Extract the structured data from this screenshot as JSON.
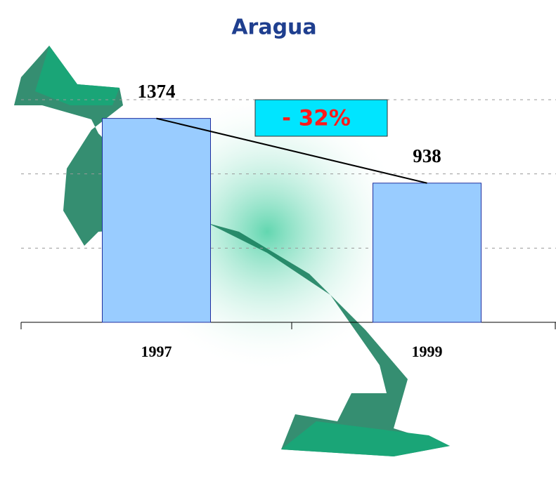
{
  "chart_data": {
    "type": "bar",
    "title": "Aragua",
    "categories": [
      "1997",
      "1999"
    ],
    "values": [
      1374,
      938
    ],
    "color": "#99ccff",
    "ylim": [
      0,
      1500
    ],
    "yticks": [
      500,
      1000,
      1500
    ],
    "grid": true,
    "tick_labels": false,
    "annotation": "- 32%"
  }
}
